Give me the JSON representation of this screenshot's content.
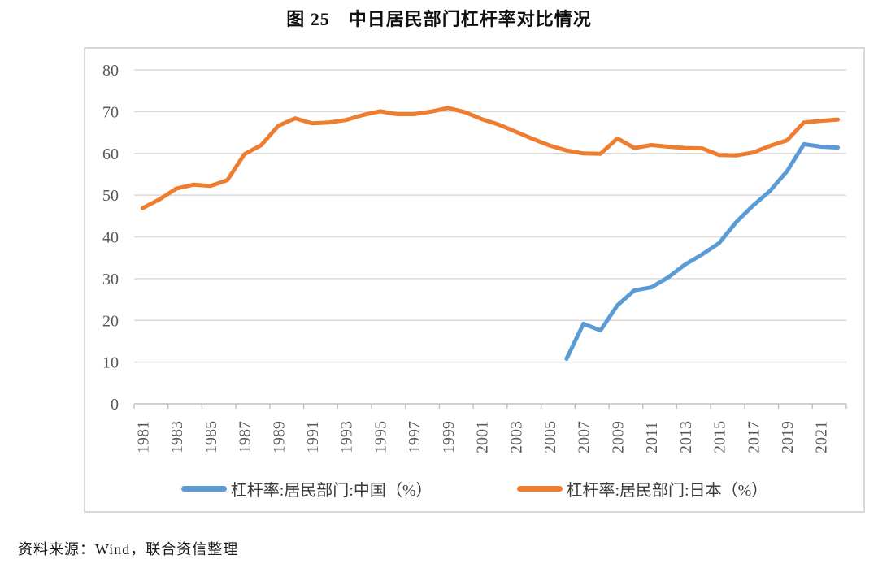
{
  "figure": {
    "title": "图 25　中日居民部门杠杆率对比情况",
    "source": "资料来源：Wind，联合资信整理"
  },
  "chart_data": {
    "type": "line",
    "x_years": [
      1981,
      1982,
      1983,
      1984,
      1985,
      1986,
      1987,
      1988,
      1989,
      1990,
      1991,
      1992,
      1993,
      1994,
      1995,
      1996,
      1997,
      1998,
      1999,
      2000,
      2001,
      2002,
      2003,
      2004,
      2005,
      2006,
      2007,
      2008,
      2009,
      2010,
      2011,
      2012,
      2013,
      2014,
      2015,
      2016,
      2017,
      2018,
      2019,
      2020,
      2021,
      2022
    ],
    "xtick_labels": [
      "1981",
      "1983",
      "1985",
      "1987",
      "1989",
      "1991",
      "1993",
      "1995",
      "1997",
      "1999",
      "2001",
      "2003",
      "2005",
      "2007",
      "2009",
      "2011",
      "2013",
      "2015",
      "2017",
      "2019",
      "2021"
    ],
    "ylim": [
      0,
      80
    ],
    "ytick_step": 10,
    "ytick_labels": [
      "0",
      "10",
      "20",
      "30",
      "40",
      "50",
      "60",
      "70",
      "80"
    ],
    "grid": "horizontal",
    "legend_position": "bottom",
    "series": [
      {
        "name": "杠杆率:居民部门:中国（%）",
        "color": "#5B9BD5",
        "values": [
          null,
          null,
          null,
          null,
          null,
          null,
          null,
          null,
          null,
          null,
          null,
          null,
          null,
          null,
          null,
          null,
          null,
          null,
          null,
          null,
          null,
          null,
          null,
          null,
          null,
          10.8,
          19.2,
          17.6,
          23.6,
          27.2,
          27.9,
          30.3,
          33.4,
          35.8,
          38.5,
          43.5,
          47.5,
          51.0,
          55.7,
          62.2,
          61.6,
          61.4
        ]
      },
      {
        "name": "杠杆率:居民部门:日本（%）",
        "color": "#ED7D31",
        "values": [
          46.9,
          49.0,
          51.6,
          52.5,
          52.2,
          53.6,
          59.8,
          62.0,
          66.6,
          68.4,
          67.2,
          67.4,
          68.0,
          69.2,
          70.1,
          69.4,
          69.4,
          70.0,
          70.9,
          69.9,
          68.2,
          66.9,
          65.2,
          63.5,
          61.9,
          60.7,
          60.0,
          59.9,
          63.6,
          61.3,
          62.0,
          61.6,
          61.3,
          61.2,
          59.6,
          59.5,
          60.2,
          61.8,
          63.1,
          67.4,
          67.8,
          68.1
        ]
      }
    ],
    "colors": {
      "grid": "#d9d9d9",
      "axis": "#bfbfbf",
      "tick_labels": "#595959"
    }
  }
}
